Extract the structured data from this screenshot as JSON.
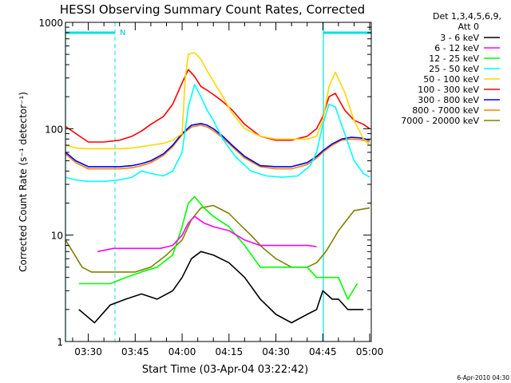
{
  "chart_data": {
    "type": "line",
    "title": "HESSI Observing Summary Count Rates, Corrected",
    "xlabel": "Start Time (03-Apr-04 03:22:42)",
    "ylabel": "Corrected Count Rate (s⁻¹ detector⁻¹)",
    "y_scale": "log",
    "ylim": [
      1,
      1000
    ],
    "xlim": [
      "03:22:42",
      "05:00:30"
    ],
    "x_ticks": [
      "03:30",
      "03:45",
      "04:00",
      "04:15",
      "04:30",
      "04:45",
      "05:00"
    ],
    "y_ticks": [
      "1",
      "10",
      "100",
      "1000"
    ],
    "legend_header": [
      "Det 1,3,4,5,6,9,",
      "Att 0"
    ],
    "legend_position": "right",
    "footer": "6-Apr-2010 04:30",
    "night_label": "N",
    "night_intervals": [
      [
        "03:22:42",
        "03:37:30"
      ],
      [
        "04:43:00",
        "05:00:00"
      ]
    ],
    "series": [
      {
        "name": "3 - 6 keV",
        "color": "#000000",
        "x": [
          "03:27",
          "03:32",
          "03:37",
          "03:42",
          "03:47",
          "03:52",
          "03:57",
          "04:00",
          "04:03",
          "04:06",
          "04:10",
          "04:15",
          "04:20",
          "04:25",
          "04:30",
          "04:35",
          "04:40",
          "04:43",
          "04:45",
          "04:48",
          "04:50",
          "04:53",
          "04:56",
          "04:58"
        ],
        "y": [
          2,
          1.5,
          2.2,
          2.5,
          2.8,
          2.5,
          3,
          4,
          6,
          7,
          6.5,
          5.5,
          4,
          2.5,
          1.8,
          1.5,
          1.8,
          2,
          3,
          2.5,
          2.5,
          2,
          2,
          2
        ]
      },
      {
        "name": "6 - 12 keV",
        "color": "#ff00ff",
        "x": [
          "03:33",
          "03:38",
          "03:43",
          "03:48",
          "03:53",
          "03:57",
          "04:00",
          "04:02",
          "04:04",
          "04:07",
          "04:10",
          "04:15",
          "04:20",
          "04:25",
          "04:30",
          "04:35",
          "04:40",
          "04:43"
        ],
        "y": [
          7,
          7.5,
          7.5,
          7.5,
          7.5,
          8,
          10,
          13,
          15,
          13,
          12,
          11,
          9,
          8,
          8,
          8,
          8,
          7.8
        ]
      },
      {
        "name": "12 - 25 keV",
        "color": "#00ff00",
        "x": [
          "03:27",
          "03:32",
          "03:37",
          "03:42",
          "03:47",
          "03:52",
          "03:57",
          "04:00",
          "04:02",
          "04:04",
          "04:07",
          "04:10",
          "04:15",
          "04:20",
          "04:25",
          "04:30",
          "04:35",
          "04:40",
          "04:43",
          "04:45",
          "04:48",
          "04:50",
          "04:53",
          "04:56"
        ],
        "y": [
          3.5,
          3.5,
          3.5,
          4,
          4.5,
          5,
          6.5,
          12,
          20,
          23,
          18,
          15,
          12,
          8,
          5,
          5,
          5,
          5,
          4,
          4,
          4,
          4,
          2.5,
          3.5
        ]
      },
      {
        "name": "25 - 50 keV",
        "color": "#00ffff",
        "x": [
          "03:22:42",
          "03:26",
          "03:30",
          "03:35",
          "03:40",
          "03:44",
          "03:47",
          "03:50",
          "03:54",
          "03:57",
          "04:00",
          "04:02",
          "04:04",
          "04:06",
          "04:08",
          "04:10",
          "04:13",
          "04:17",
          "04:22",
          "04:27",
          "04:32",
          "04:37",
          "04:41",
          "04:43",
          "04:45",
          "04:47",
          "04:49",
          "04:52",
          "04:55",
          "04:58",
          "05:00:00"
        ],
        "y": [
          35,
          33,
          32,
          32,
          33,
          35,
          40,
          38,
          36,
          40,
          60,
          160,
          260,
          200,
          150,
          120,
          80,
          55,
          40,
          36,
          35,
          36,
          45,
          60,
          110,
          170,
          160,
          90,
          50,
          38,
          35
        ]
      },
      {
        "name": "50 - 100 keV",
        "color": "#ffd700",
        "x": [
          "03:22:42",
          "03:26",
          "03:30",
          "03:35",
          "03:40",
          "03:44",
          "03:47",
          "03:50",
          "03:54",
          "03:57",
          "04:00",
          "04:01",
          "04:02",
          "04:04",
          "04:06",
          "04:08",
          "04:10",
          "04:13",
          "04:16",
          "04:20",
          "04:25",
          "04:30",
          "04:35",
          "04:40",
          "04:43",
          "04:45",
          "04:47",
          "04:49",
          "04:52",
          "04:55",
          "04:58",
          "05:00:00"
        ],
        "y": [
          70,
          66,
          65,
          65,
          65,
          66,
          68,
          70,
          73,
          78,
          90,
          300,
          500,
          520,
          450,
          350,
          280,
          200,
          140,
          100,
          85,
          80,
          80,
          80,
          85,
          120,
          250,
          340,
          220,
          120,
          80,
          70
        ]
      },
      {
        "name": "100 - 300 keV",
        "color": "#ff0000",
        "x": [
          "03:22:42",
          "03:26",
          "03:30",
          "03:35",
          "03:40",
          "03:44",
          "03:47",
          "03:50",
          "03:54",
          "03:57",
          "04:00",
          "04:02",
          "04:04",
          "04:06",
          "04:08",
          "04:10",
          "04:13",
          "04:16",
          "04:20",
          "04:25",
          "04:30",
          "04:35",
          "04:40",
          "04:43",
          "04:45",
          "04:47",
          "04:49",
          "04:52",
          "04:55",
          "04:58",
          "05:00:00"
        ],
        "y": [
          105,
          90,
          75,
          75,
          78,
          85,
          95,
          110,
          130,
          170,
          270,
          360,
          310,
          250,
          230,
          210,
          180,
          150,
          110,
          85,
          78,
          78,
          85,
          100,
          130,
          200,
          215,
          150,
          120,
          110,
          100
        ]
      },
      {
        "name": "300 - 800 keV",
        "color": "#0000ff",
        "x": [
          "03:22:42",
          "03:26",
          "03:30",
          "03:35",
          "03:40",
          "03:44",
          "03:47",
          "03:50",
          "03:54",
          "03:57",
          "04:00",
          "04:03",
          "04:06",
          "04:08",
          "04:10",
          "04:13",
          "04:16",
          "04:20",
          "04:25",
          "04:30",
          "04:35",
          "04:40",
          "04:43",
          "04:45",
          "04:48",
          "04:51",
          "04:54",
          "04:57",
          "05:00:00"
        ],
        "y": [
          60,
          50,
          44,
          44,
          44,
          45,
          47,
          50,
          58,
          70,
          90,
          108,
          112,
          108,
          100,
          85,
          70,
          55,
          45,
          44,
          44,
          48,
          55,
          62,
          72,
          80,
          83,
          82,
          78
        ]
      },
      {
        "name": "800 - 7000 keV",
        "color": "#ff8000",
        "x": [
          "03:22:42",
          "03:26",
          "03:30",
          "03:35",
          "03:40",
          "03:44",
          "03:47",
          "03:50",
          "03:54",
          "03:57",
          "04:00",
          "04:03",
          "04:06",
          "04:08",
          "04:10",
          "04:13",
          "04:16",
          "04:20",
          "04:25",
          "04:30",
          "04:35",
          "04:40",
          "04:43",
          "04:45",
          "04:48",
          "04:51",
          "04:54",
          "04:57",
          "05:00:00"
        ],
        "y": [
          58,
          48,
          42,
          42,
          42,
          43,
          45,
          48,
          56,
          68,
          88,
          104,
          108,
          104,
          96,
          82,
          68,
          53,
          44,
          42,
          42,
          46,
          53,
          60,
          70,
          78,
          80,
          79,
          75
        ]
      },
      {
        "name": "7000 - 20000 keV",
        "color": "#808000",
        "x": [
          "03:22:42",
          "03:25",
          "03:28",
          "03:31",
          "03:35",
          "03:40",
          "03:45",
          "03:50",
          "03:55",
          "04:00",
          "04:03",
          "04:06",
          "04:10",
          "04:15",
          "04:18",
          "04:22",
          "04:26",
          "04:30",
          "04:35",
          "04:40",
          "04:43",
          "04:46",
          "04:50",
          "04:55",
          "05:00:00"
        ],
        "y": [
          9,
          7,
          5,
          4.5,
          4.5,
          4.5,
          4.5,
          5,
          6.5,
          9,
          14,
          18,
          19,
          16,
          13,
          10,
          7.5,
          6,
          5,
          5,
          5.5,
          7,
          11,
          17,
          18
        ]
      }
    ]
  }
}
